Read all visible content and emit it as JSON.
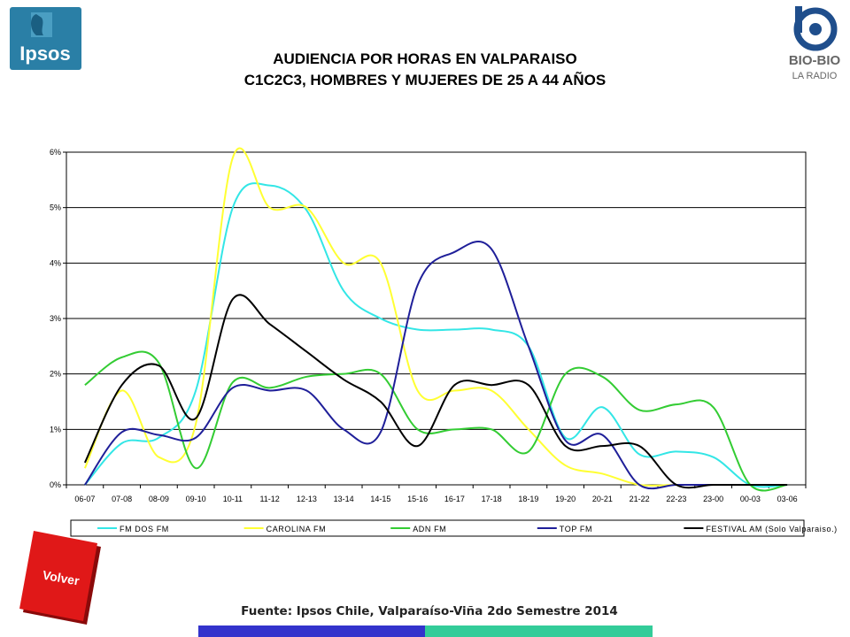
{
  "header": {
    "title_line1": "AUDIENCIA POR HORAS EN VALPARAISO",
    "title_line2": "C1C2C3, HOMBRES Y MUJERES DE 25 A 44 AÑOS",
    "brand_left": "Ipsos",
    "brand_right": "BIO-BIO",
    "brand_right_sub": "LA RADIO"
  },
  "buttons": {
    "volver_label": "Volver"
  },
  "footer": {
    "source": "Fuente: Ipsos Chile, Valparaíso-Viña 2do Semestre 2014",
    "bar_colors": [
      "#3333cc",
      "#33cc99"
    ]
  },
  "colors": {
    "ipsos_bg": "#2a7fa6",
    "volver_red": "#e01818",
    "biobio_blue": "#1f4e8c"
  },
  "chart_data": {
    "type": "line",
    "categories": [
      "06-07",
      "07-08",
      "08-09",
      "09-10",
      "10-11",
      "11-12",
      "12-13",
      "13-14",
      "14-15",
      "15-16",
      "16-17",
      "17-18",
      "18-19",
      "19-20",
      "20-21",
      "21-22",
      "22-23",
      "23-00",
      "00-03",
      "03-06"
    ],
    "y_ticks": [
      "0%",
      "1%",
      "2%",
      "3%",
      "4%",
      "5%",
      "6%"
    ],
    "ylim": [
      0,
      6
    ],
    "grid": true,
    "legend_position": "bottom",
    "series": [
      {
        "name": "FM DOS FM",
        "color": "#33e6e6",
        "values": [
          0.0,
          0.75,
          0.85,
          1.7,
          5.0,
          5.4,
          4.95,
          3.5,
          3.0,
          2.8,
          2.8,
          2.8,
          2.5,
          0.85,
          1.4,
          0.55,
          0.6,
          0.5,
          0.0,
          0.0
        ]
      },
      {
        "name": "CAROLINA FM",
        "color": "#ffff33",
        "values": [
          0.3,
          1.7,
          0.5,
          1.1,
          5.9,
          5.0,
          5.0,
          4.0,
          4.0,
          1.7,
          1.7,
          1.7,
          1.0,
          0.35,
          0.2,
          0.0,
          0.0,
          0.0,
          0.0,
          0.0
        ]
      },
      {
        "name": "ADN FM",
        "color": "#33cc33",
        "values": [
          1.8,
          2.3,
          2.2,
          0.3,
          1.85,
          1.75,
          1.95,
          2.0,
          2.0,
          1.0,
          1.0,
          1.0,
          0.6,
          2.0,
          1.95,
          1.35,
          1.45,
          1.4,
          0.0,
          0.0
        ]
      },
      {
        "name": "TOP FM",
        "color": "#1f1f99",
        "values": [
          0.0,
          0.95,
          0.9,
          0.85,
          1.75,
          1.7,
          1.7,
          1.0,
          0.95,
          3.6,
          4.2,
          4.25,
          2.5,
          0.8,
          0.9,
          0.0,
          0.0,
          0.0,
          0.0,
          0.0
        ]
      },
      {
        "name": "FESTIVAL AM (Solo Valparaiso.)",
        "color": "#000000",
        "values": [
          0.4,
          1.8,
          2.15,
          1.2,
          3.35,
          2.9,
          2.4,
          1.9,
          1.5,
          0.7,
          1.8,
          1.8,
          1.8,
          0.7,
          0.7,
          0.7,
          0.0,
          0.0,
          0.0,
          0.0
        ]
      }
    ]
  }
}
